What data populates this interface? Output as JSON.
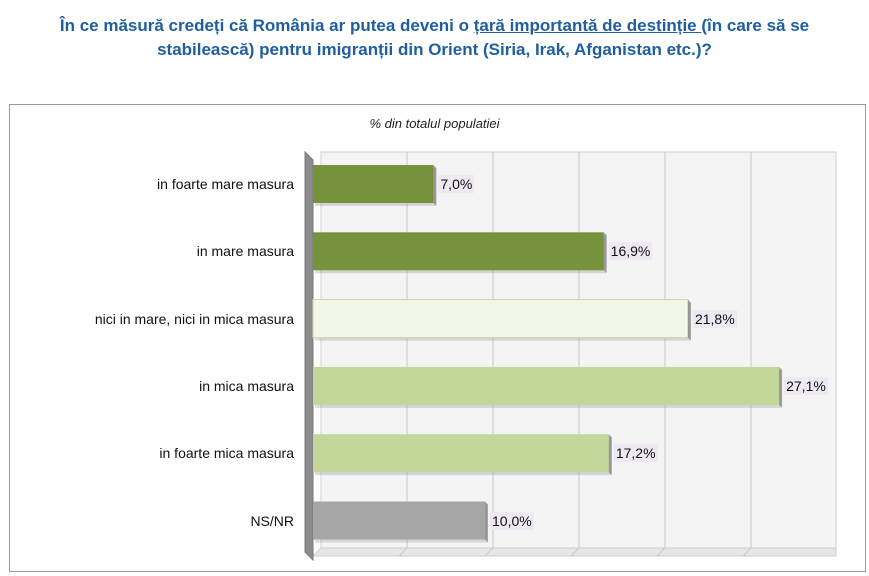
{
  "title": {
    "line1_before": "În ce măsură credeți că România ar putea deveni o ",
    "line1_underlined": "țară importantă de destinție ",
    "line1_after": "(în care să se",
    "line2": "stabilească) pentru imigranții din Orient (Siria, Irak, Afganistan etc.)?"
  },
  "chart_data": {
    "type": "bar",
    "orientation": "horizontal",
    "subtitle": "% din totalul populatiei",
    "categories": [
      "in foarte mare masura",
      "in mare masura",
      "nici in mare, nici in mica masura",
      "in mica masura",
      "in foarte mica masura",
      "NS/NR"
    ],
    "values": [
      7.0,
      16.9,
      21.8,
      27.1,
      17.2,
      10.0
    ],
    "value_labels": [
      "7,0%",
      "16,9%",
      "21,8%",
      "27,1%",
      "17,2%",
      "10,0%"
    ],
    "colors": [
      "#76933c",
      "#76933c",
      "#f2f7e8",
      "#c4d79b",
      "#c4d79b",
      "#a6a6a6"
    ],
    "xlim": [
      0,
      30
    ],
    "grid": true
  }
}
